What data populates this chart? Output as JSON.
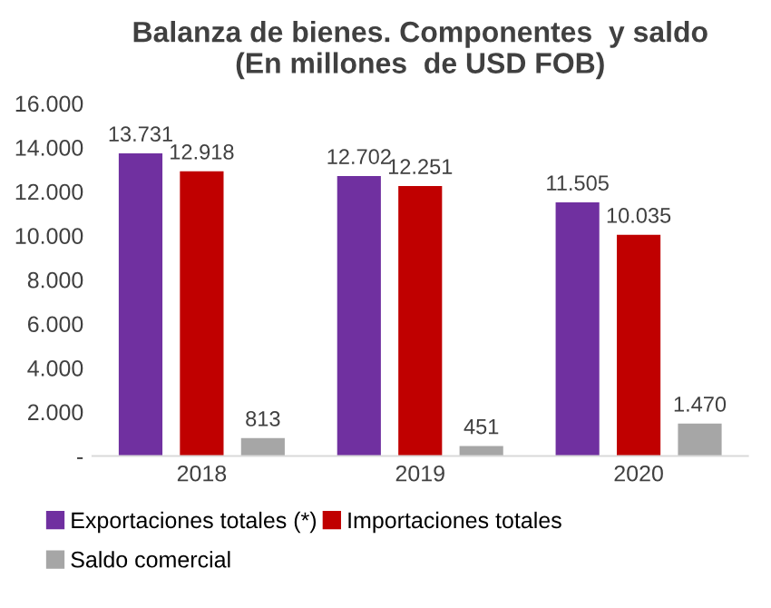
{
  "chart_data": {
    "type": "bar",
    "title": "Balanza de bienes. Componentes  y saldo\n(En millones  de USD FOB)",
    "categories": [
      "2018",
      "2019",
      "2020"
    ],
    "series": [
      {
        "name": "Exportaciones totales (*)",
        "color": "#7030a0",
        "values": [
          13731,
          12702,
          11505
        ],
        "value_labels": [
          "13.731",
          "12.702",
          "11.505"
        ]
      },
      {
        "name": "Importaciones totales",
        "color": "#c00000",
        "values": [
          12918,
          12251,
          10035
        ],
        "value_labels": [
          "12.918",
          "12.251",
          "10.035"
        ]
      },
      {
        "name": "Saldo comercial",
        "color": "#a6a6a6",
        "values": [
          813,
          451,
          1470
        ],
        "value_labels": [
          "813",
          "451",
          "1.470"
        ]
      }
    ],
    "ylim": [
      0,
      16000
    ],
    "yticks": [
      {
        "value": 0,
        "label": "-"
      },
      {
        "value": 2000,
        "label": "2.000"
      },
      {
        "value": 4000,
        "label": "4.000"
      },
      {
        "value": 6000,
        "label": "6.000"
      },
      {
        "value": 8000,
        "label": "8.000"
      },
      {
        "value": 10000,
        "label": "10.000"
      },
      {
        "value": 12000,
        "label": "12.000"
      },
      {
        "value": 14000,
        "label": "14.000"
      },
      {
        "value": 16000,
        "label": "16.000"
      }
    ],
    "legend": "bottom",
    "grid": false
  }
}
